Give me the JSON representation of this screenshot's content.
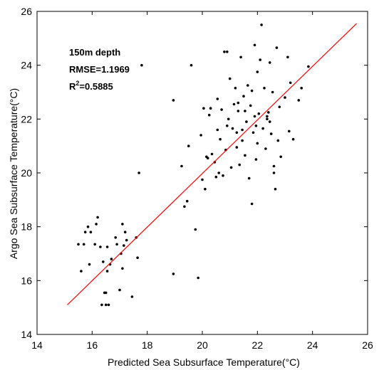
{
  "chart_data": {
    "type": "scatter",
    "xlabel": "Predicted Sea Subsurface Temperature(°C)",
    "ylabel": "Argo Sea Subsurface Temperature(°C)",
    "xlim": [
      14,
      26
    ],
    "ylim": [
      14,
      26
    ],
    "xticks": [
      "14",
      "16",
      "18",
      "20",
      "22",
      "24",
      "26"
    ],
    "yticks": [
      "14",
      "16",
      "18",
      "20",
      "22",
      "24",
      "26"
    ],
    "annotations": {
      "depth": "150m depth",
      "rmse": "RMSE=1.1969",
      "r2_prefix": "R",
      "r2_sup": "2",
      "r2_value": "=0.5885"
    },
    "colors": {
      "points": "#000000",
      "fit_line": "#ff0000",
      "frame": "#000000"
    },
    "grid": false,
    "fit_line": {
      "x": [
        15.1,
        25.6
      ],
      "y": [
        15.1,
        25.55
      ]
    },
    "points": [
      [
        15.5,
        17.35
      ],
      [
        15.6,
        16.35
      ],
      [
        15.7,
        17.35
      ],
      [
        15.75,
        17.8
      ],
      [
        15.85,
        18.0
      ],
      [
        15.9,
        16.6
      ],
      [
        15.95,
        17.8
      ],
      [
        16.1,
        17.35
      ],
      [
        16.15,
        18.1
      ],
      [
        16.2,
        18.35
      ],
      [
        16.3,
        17.25
      ],
      [
        16.35,
        15.1
      ],
      [
        16.4,
        16.7
      ],
      [
        16.45,
        15.55
      ],
      [
        16.5,
        15.55
      ],
      [
        16.5,
        15.1
      ],
      [
        16.55,
        16.35
      ],
      [
        16.55,
        17.25
      ],
      [
        16.6,
        15.1
      ],
      [
        16.65,
        16.6
      ],
      [
        16.7,
        16.8
      ],
      [
        16.85,
        17.6
      ],
      [
        16.9,
        17.35
      ],
      [
        17.0,
        15.65
      ],
      [
        17.05,
        17.0
      ],
      [
        17.1,
        16.45
      ],
      [
        17.1,
        18.1
      ],
      [
        17.15,
        17.3
      ],
      [
        17.2,
        17.8
      ],
      [
        17.25,
        17.5
      ],
      [
        17.45,
        15.4
      ],
      [
        17.6,
        17.6
      ],
      [
        17.65,
        16.85
      ],
      [
        17.7,
        20.0
      ],
      [
        17.8,
        24.0
      ],
      [
        18.95,
        16.25
      ],
      [
        18.95,
        22.7
      ],
      [
        19.25,
        20.25
      ],
      [
        19.35,
        18.75
      ],
      [
        19.45,
        18.95
      ],
      [
        19.5,
        21.0
      ],
      [
        19.6,
        24.0
      ],
      [
        19.75,
        17.9
      ],
      [
        19.85,
        16.1
      ],
      [
        19.95,
        21.4
      ],
      [
        20.0,
        19.75
      ],
      [
        20.05,
        22.4
      ],
      [
        20.1,
        19.4
      ],
      [
        20.15,
        20.6
      ],
      [
        20.2,
        20.55
      ],
      [
        20.25,
        22.15
      ],
      [
        20.3,
        22.4
      ],
      [
        20.35,
        20.7
      ],
      [
        20.45,
        20.4
      ],
      [
        20.5,
        19.85
      ],
      [
        20.55,
        21.6
      ],
      [
        20.6,
        20.0
      ],
      [
        20.65,
        21.25
      ],
      [
        20.7,
        22.35
      ],
      [
        20.75,
        19.9
      ],
      [
        20.8,
        24.5
      ],
      [
        20.85,
        20.85
      ],
      [
        20.9,
        24.5
      ],
      [
        20.95,
        22.0
      ],
      [
        21.0,
        23.5
      ],
      [
        21.05,
        20.2
      ],
      [
        21.1,
        21.65
      ],
      [
        21.15,
        22.55
      ],
      [
        21.2,
        23.15
      ],
      [
        21.25,
        20.95
      ],
      [
        21.3,
        22.3
      ],
      [
        21.35,
        20.3
      ],
      [
        21.4,
        24.3
      ],
      [
        21.45,
        21.6
      ],
      [
        21.5,
        22.85
      ],
      [
        21.55,
        20.65
      ],
      [
        21.6,
        21.9
      ],
      [
        21.65,
        23.25
      ],
      [
        21.7,
        19.8
      ],
      [
        21.75,
        22.5
      ],
      [
        21.8,
        18.85
      ],
      [
        21.85,
        21.5
      ],
      [
        21.9,
        24.75
      ],
      [
        21.95,
        20.5
      ],
      [
        22.0,
        23.75
      ],
      [
        22.05,
        22.2
      ],
      [
        22.1,
        24.2
      ],
      [
        22.15,
        25.5
      ],
      [
        22.2,
        21.65
      ],
      [
        22.25,
        23.15
      ],
      [
        22.3,
        20.9
      ],
      [
        22.35,
        22.0
      ],
      [
        22.4,
        22.25
      ],
      [
        22.45,
        24.1
      ],
      [
        22.5,
        21.45
      ],
      [
        22.55,
        23.0
      ],
      [
        22.6,
        20.25
      ],
      [
        22.65,
        19.4
      ],
      [
        22.7,
        24.65
      ],
      [
        22.75,
        21.2
      ],
      [
        22.8,
        22.45
      ],
      [
        22.85,
        20.6
      ],
      [
        23.0,
        22.8
      ],
      [
        23.1,
        24.3
      ],
      [
        23.15,
        21.55
      ],
      [
        23.2,
        23.35
      ],
      [
        23.3,
        21.25
      ],
      [
        23.5,
        22.7
      ],
      [
        23.6,
        23.15
      ],
      [
        23.85,
        23.95
      ],
      [
        21.3,
        22.6
      ],
      [
        21.45,
        21.2
      ],
      [
        21.9,
        22.1
      ],
      [
        22.35,
        22.1
      ],
      [
        20.9,
        21.75
      ],
      [
        21.55,
        22.3
      ],
      [
        22.0,
        21.1
      ],
      [
        21.25,
        21.5
      ],
      [
        22.6,
        20.0
      ],
      [
        21.95,
        21.75
      ],
      [
        20.55,
        22.75
      ],
      [
        21.8,
        23.05
      ],
      [
        22.45,
        21.9
      ]
    ]
  }
}
